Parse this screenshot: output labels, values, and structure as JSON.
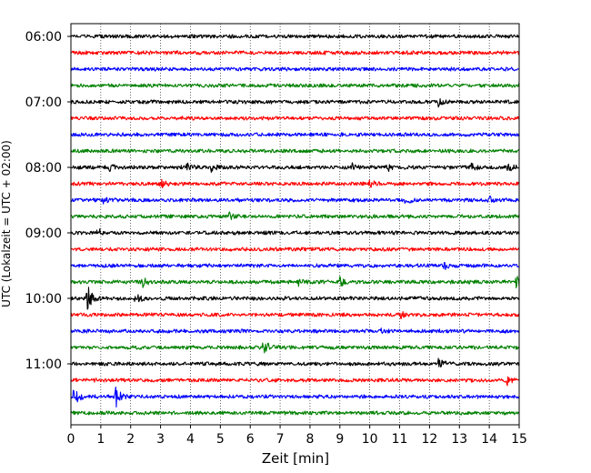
{
  "chart_data": {
    "type": "line",
    "title": "",
    "xlabel": "Zeit  [min]",
    "ylabel": "UTC (Lokalzeit = UTC + 02:00)",
    "xlim": [
      0,
      15
    ],
    "x_ticks": [
      "0",
      "1",
      "2",
      "3",
      "4",
      "5",
      "6",
      "7",
      "8",
      "9",
      "10",
      "11",
      "12",
      "13",
      "14",
      "15"
    ],
    "y_ticks": [
      "06:00",
      "07:00",
      "08:00",
      "09:00",
      "10:00",
      "11:00"
    ],
    "grid": "vertical dotted lines at each minute",
    "colors": [
      "#000000",
      "#ff0000",
      "#0000ff",
      "#008000"
    ],
    "trace_interval_min": 15,
    "traces": [
      {
        "start": "06:00",
        "color": "#000000",
        "events": []
      },
      {
        "start": "06:15",
        "color": "#ff0000",
        "events": []
      },
      {
        "start": "06:30",
        "color": "#0000ff",
        "events": []
      },
      {
        "start": "06:45",
        "color": "#008000",
        "events": []
      },
      {
        "start": "07:00",
        "color": "#000000",
        "events": [
          {
            "t": 12.3,
            "amp": 1.5
          }
        ]
      },
      {
        "start": "07:15",
        "color": "#ff0000",
        "events": []
      },
      {
        "start": "07:30",
        "color": "#0000ff",
        "events": []
      },
      {
        "start": "07:45",
        "color": "#008000",
        "events": []
      },
      {
        "start": "08:00",
        "color": "#000000",
        "events": [
          {
            "t": 1.3,
            "amp": 1.4
          },
          {
            "t": 3.9,
            "amp": 1.4
          },
          {
            "t": 4.7,
            "amp": 1.6
          },
          {
            "t": 9.4,
            "amp": 1.3
          },
          {
            "t": 10.6,
            "amp": 1.5
          },
          {
            "t": 13.4,
            "amp": 1.8
          },
          {
            "t": 14.6,
            "amp": 1.5
          }
        ]
      },
      {
        "start": "08:15",
        "color": "#ff0000",
        "events": [
          {
            "t": 3.0,
            "amp": 2.0
          },
          {
            "t": 10.0,
            "amp": 1.3
          }
        ]
      },
      {
        "start": "08:30",
        "color": "#0000ff",
        "events": [
          {
            "t": 1.1,
            "amp": 1.3
          },
          {
            "t": 11.2,
            "amp": 1.5
          },
          {
            "t": 14.0,
            "amp": 1.4
          }
        ]
      },
      {
        "start": "08:45",
        "color": "#008000",
        "events": [
          {
            "t": 5.3,
            "amp": 1.2
          }
        ]
      },
      {
        "start": "09:00",
        "color": "#000000",
        "events": [
          {
            "t": 0.9,
            "amp": 1.5
          }
        ]
      },
      {
        "start": "09:15",
        "color": "#ff0000",
        "events": []
      },
      {
        "start": "09:30",
        "color": "#0000ff",
        "events": [
          {
            "t": 12.5,
            "amp": 1.3
          }
        ]
      },
      {
        "start": "09:45",
        "color": "#008000",
        "events": [
          {
            "t": 2.4,
            "amp": 1.6
          },
          {
            "t": 7.6,
            "amp": 1.5
          },
          {
            "t": 9.0,
            "amp": 1.5
          },
          {
            "t": 14.9,
            "amp": 2.8
          }
        ]
      },
      {
        "start": "10:00",
        "color": "#000000",
        "events": [
          {
            "t": 0.55,
            "amp": 5.0
          },
          {
            "t": 2.15,
            "amp": 2.6
          }
        ]
      },
      {
        "start": "10:15",
        "color": "#ff0000",
        "events": [
          {
            "t": 11.0,
            "amp": 1.5
          }
        ]
      },
      {
        "start": "10:30",
        "color": "#0000ff",
        "events": [
          {
            "t": 10.4,
            "amp": 1.3
          }
        ]
      },
      {
        "start": "10:45",
        "color": "#008000",
        "events": [
          {
            "t": 6.45,
            "amp": 4.0
          }
        ]
      },
      {
        "start": "11:00",
        "color": "#000000",
        "events": [
          {
            "t": 12.3,
            "amp": 2.2
          }
        ]
      },
      {
        "start": "11:15",
        "color": "#ff0000",
        "events": [
          {
            "t": 14.6,
            "amp": 1.6
          }
        ]
      },
      {
        "start": "11:30",
        "color": "#0000ff",
        "events": [
          {
            "t": 0.1,
            "amp": 4.0
          },
          {
            "t": 1.5,
            "amp": 4.0
          }
        ]
      },
      {
        "start": "11:45",
        "color": "#008000",
        "events": []
      }
    ]
  }
}
